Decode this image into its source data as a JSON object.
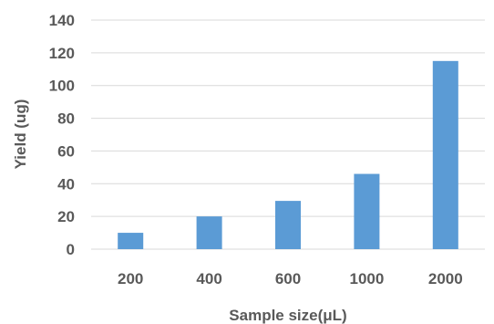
{
  "chart_data": {
    "type": "bar",
    "title": "",
    "xlabel": "Sample size(μL)",
    "ylabel": "Yield (ug)",
    "categories": [
      "200",
      "400",
      "600",
      "1000",
      "2000"
    ],
    "values": [
      10,
      20,
      29.5,
      46,
      115
    ],
    "ylim": [
      0,
      140
    ],
    "yticks": [
      "0",
      "20",
      "40",
      "60",
      "80",
      "100",
      "120",
      "140"
    ],
    "grid": true,
    "legend": "none",
    "bar_color": "#5b9bd5",
    "grid_color": "#d9d9d9"
  }
}
